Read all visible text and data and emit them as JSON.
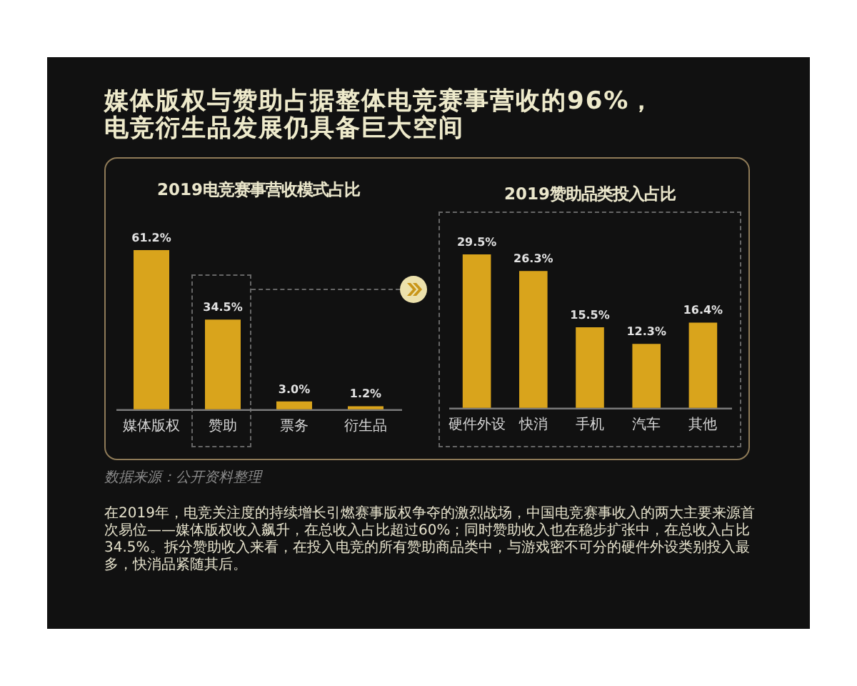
{
  "chart_data": [
    {
      "type": "other",
      "title": "媒体版权与赞助占据整体电竞赛事营收的96%，电竞衍生品发展仍具备巨大空间"
    },
    {
      "type": "bar",
      "title": "2019电竞赛事营收模式占比",
      "categories": [
        "媒体版权",
        "赞助",
        "票务",
        "衍生品"
      ],
      "values": [
        61.2,
        34.5,
        3.0,
        1.2
      ],
      "value_labels": [
        "61.2%",
        "34.5%",
        "3.0%",
        "1.2%"
      ],
      "color": "#d9a41c"
    },
    {
      "type": "bar",
      "title": "2019赞助品类投入占比",
      "categories": [
        "硬件外设",
        "快消",
        "手机",
        "汽车",
        "其他"
      ],
      "values": [
        29.5,
        26.3,
        15.5,
        12.3,
        16.4
      ],
      "value_labels": [
        "29.5%",
        "26.3%",
        "15.5%",
        "12.3%",
        "16.4%"
      ],
      "color": "#d9a41c"
    },
    {
      "type": "other",
      "annotations": [
        "数据来源：公开资料整理",
        "在2019年，电竞关注度的持续增长引燃赛事版权争夺的激烈战场，中国电竞赛事收入的两大主要来源首次易位——媒体版权收入飙升，在总收入占比超过60%；同时赞助收入也在稳步扩张中，在总收入占比34.5%。拆分赞助收入来看，在投入电竞的所有赞助商品类中，与游戏密不可分的硬件外设类别投入最多，快消品紧随其后。"
      ]
    }
  ]
}
